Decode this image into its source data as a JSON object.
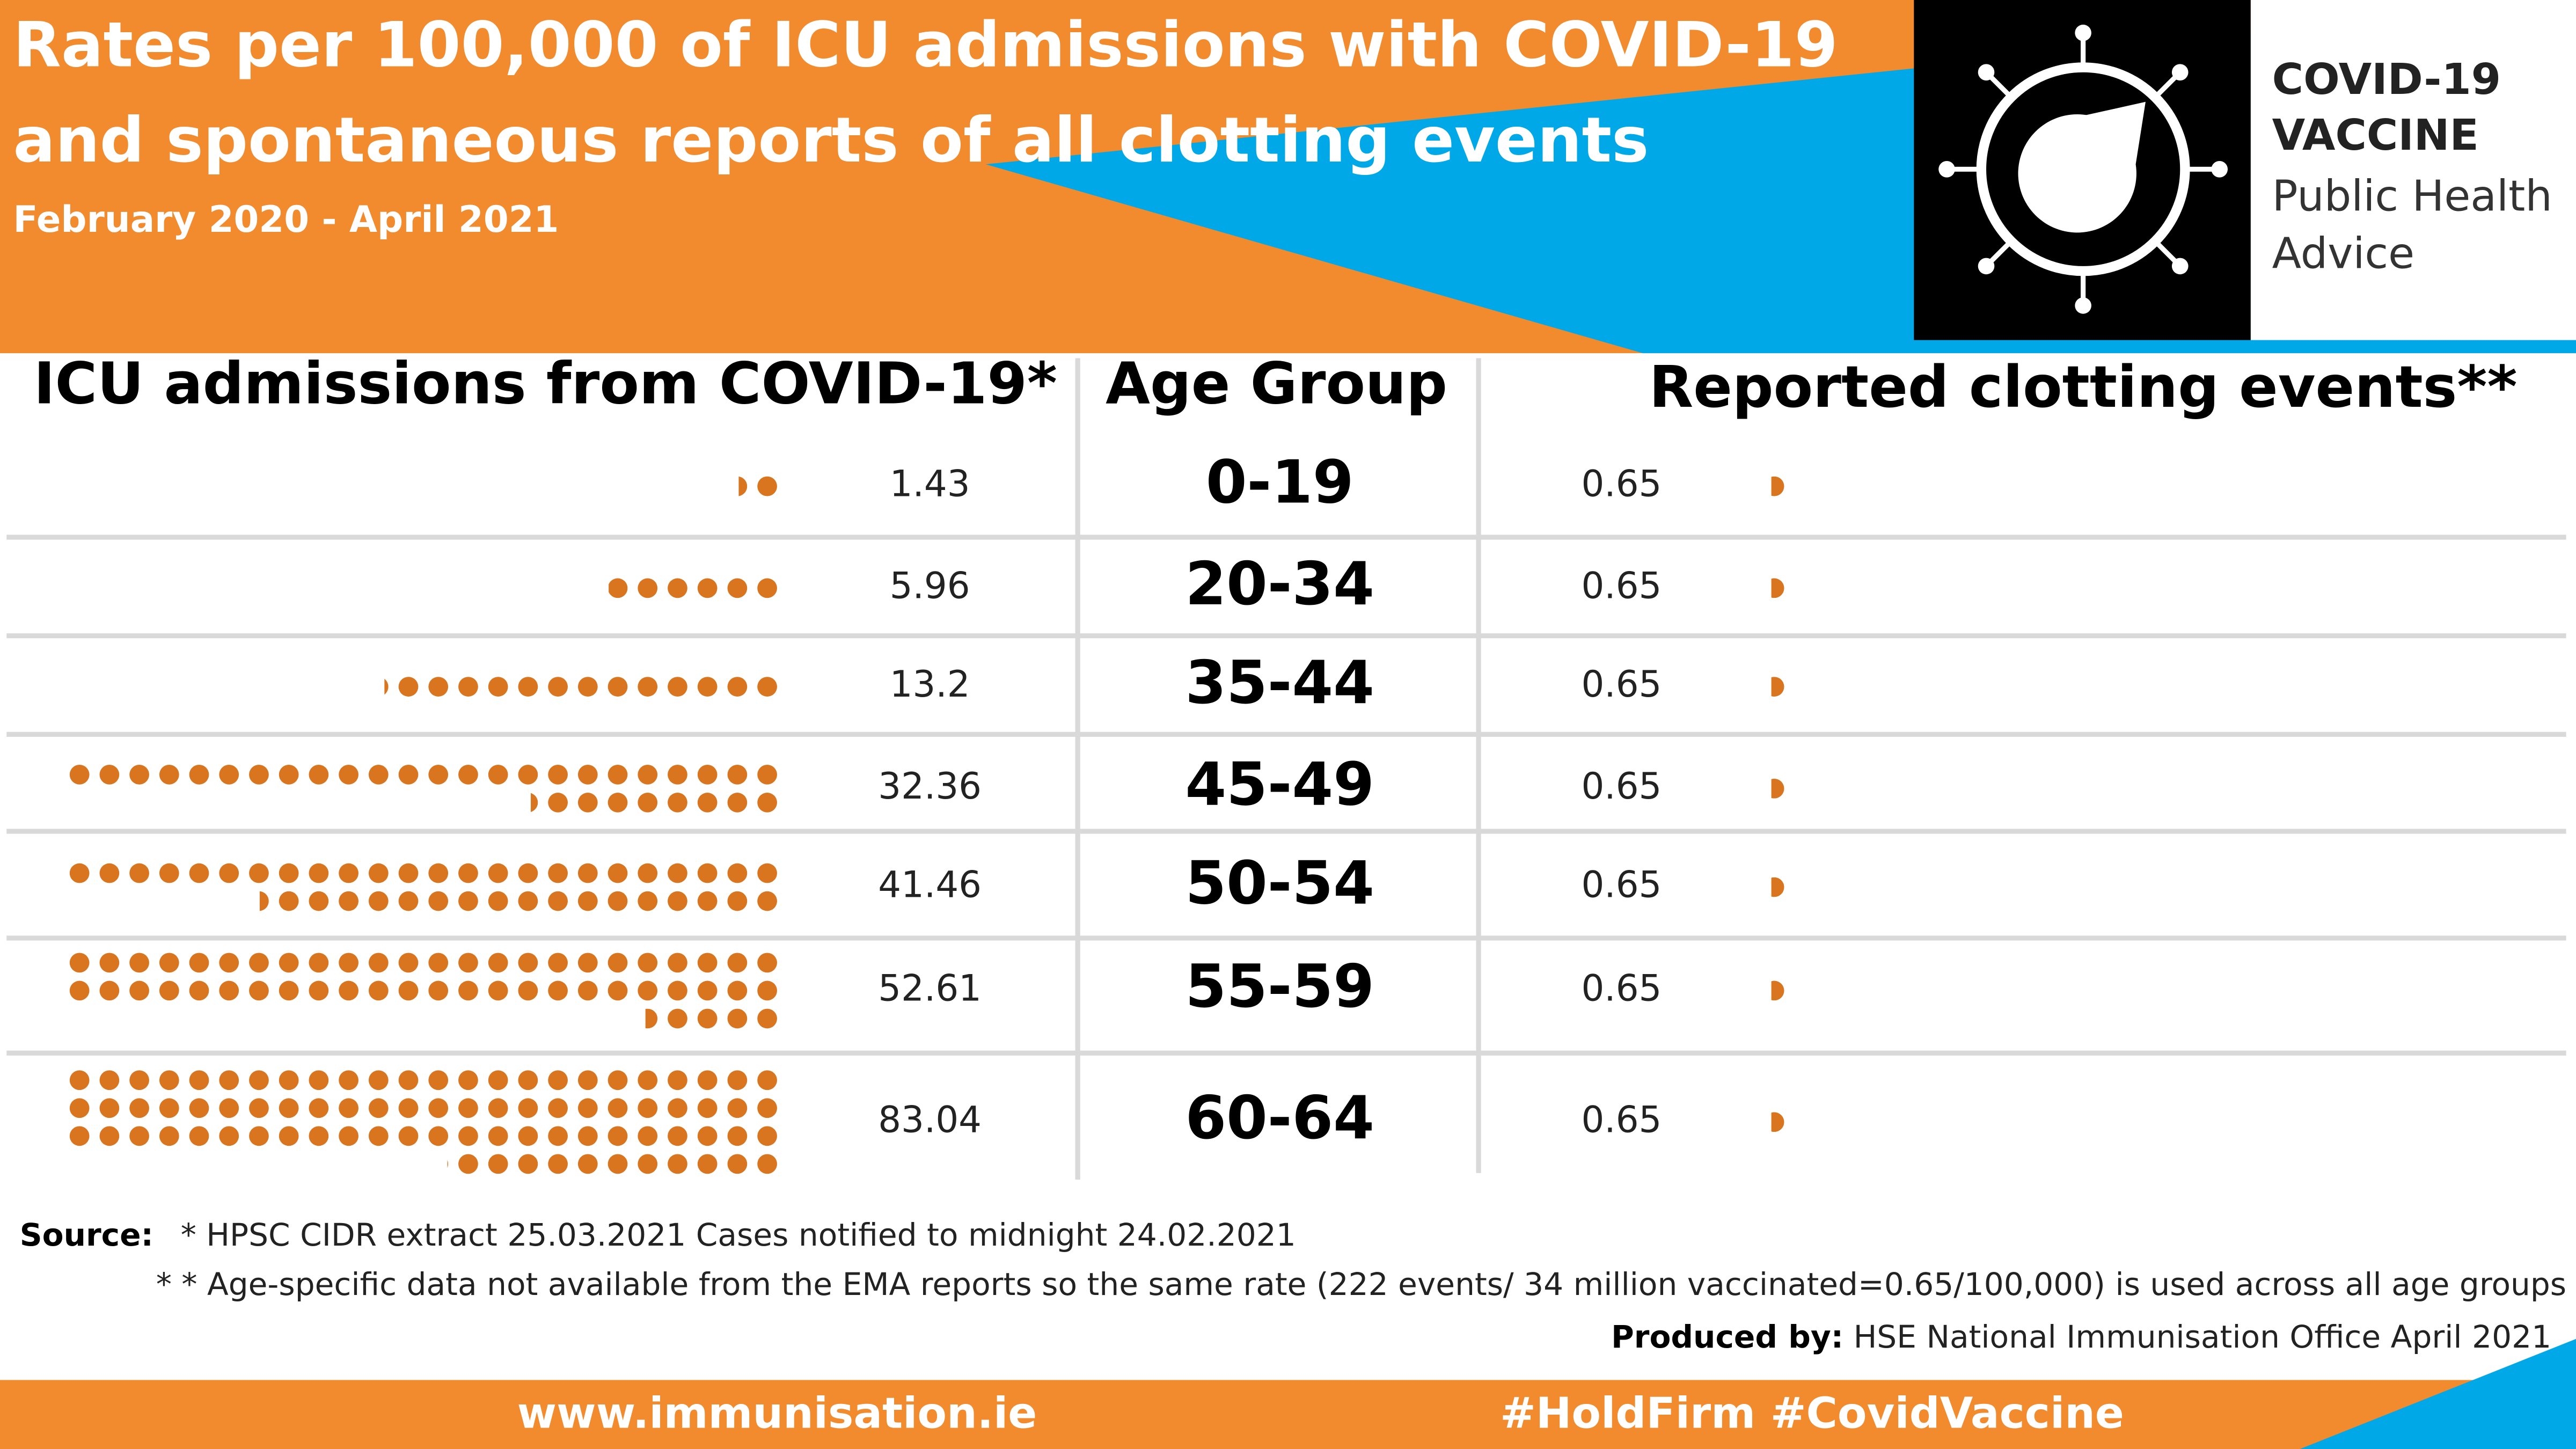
{
  "chart_data": {
    "type": "pictograph",
    "title": [
      "Rates per 100,000 of ICU admissions with COVID-19",
      "and spontaneous reports of all clotting events"
    ],
    "subtitle": "February 2020 - April 2021",
    "category_header": "Age Group",
    "categories": [
      "0-19",
      "20-34",
      "35-44",
      "45-49",
      "50-54",
      "55-59",
      "60-64"
    ],
    "series": [
      {
        "name": "ICU admissions from COVID-19*",
        "color": "#d9751f",
        "values": [
          1.43,
          5.96,
          13.2,
          32.36,
          41.46,
          52.61,
          83.04
        ]
      },
      {
        "name": "Reported clotting events**",
        "color": "#d9751f",
        "values": [
          0.65,
          0.65,
          0.65,
          0.65,
          0.65,
          0.65,
          0.65
        ]
      }
    ]
  },
  "logo": [
    "COVID-19",
    "VACCINE",
    "Public Health",
    "Advice"
  ],
  "source": {
    "label": "Source:",
    "notes": [
      "*  HPSC CIDR extract 25.03.2021 Cases notified to midnight 24.02.2021",
      "* *  Age-specific data not available from the EMA reports so the same rate (222 events/ 34 million vaccinated=0.65/100,000) is used across all age groups"
    ],
    "produced_label": "Produced by:",
    "produced_text": "HSE National Immunisation Office April 2021"
  },
  "footer": [
    "www.immunisation.ie",
    "#HoldFirm #CovidVaccine"
  ]
}
